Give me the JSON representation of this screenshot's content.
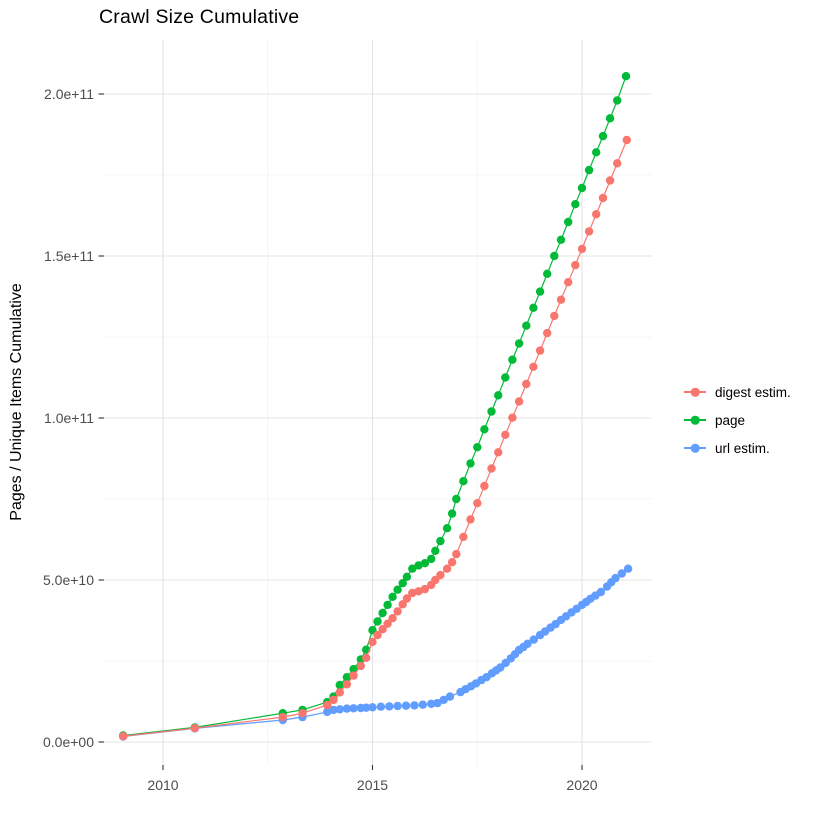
{
  "title": "Crawl Size Cumulative",
  "axes": {
    "y_label": "Pages / Unique Items Cumulative",
    "y_ticks": [
      "0.0e+00",
      "5.0e+10",
      "1.0e+11",
      "1.5e+11",
      "2.0e+11"
    ],
    "x_ticks": [
      "2010",
      "2015",
      "2020"
    ]
  },
  "legend": {
    "items": [
      {
        "label": "digest estim.",
        "color": "#F8766D"
      },
      {
        "label": "page",
        "color": "#00BA38"
      },
      {
        "label": "url estim.",
        "color": "#619CFF"
      }
    ]
  },
  "colors": {
    "grid_major": "#e4e4e4",
    "grid_minor": "#f0f0f0",
    "tick_mark": "#333333",
    "axis_text": "#4d4d4d"
  },
  "chart_data": {
    "type": "line",
    "title": "Crawl Size Cumulative",
    "xlabel": "",
    "ylabel": "Pages / Unique Items Cumulative",
    "x_unit": "year (decimal)",
    "value_unit_multiplier": 1000000000.0,
    "xlim": [
      2008.6,
      2021.7
    ],
    "ylim": [
      0,
      216000000000.0
    ],
    "grid": true,
    "legend_position": "right",
    "x_tick_values": [
      2010,
      2015,
      2020
    ],
    "x_minor_tick_values": [
      2012.5,
      2017.5
    ],
    "y_tick_values_billions": [
      0,
      50,
      100,
      150,
      200
    ],
    "y_minor_tick_values_billions": [
      25,
      75,
      125,
      175
    ],
    "marker_radius_px": 4.2,
    "series": [
      {
        "name": "digest estim.",
        "color": "#F8766D",
        "draw_order": 3,
        "points_year_billions": [
          [
            2009.05,
            1.8
          ],
          [
            2010.76,
            4.3
          ],
          [
            2012.86,
            7.7
          ],
          [
            2013.33,
            8.9
          ],
          [
            2013.92,
            11.4
          ],
          [
            2014.07,
            13.0
          ],
          [
            2014.22,
            15.3
          ],
          [
            2014.39,
            17.8
          ],
          [
            2014.55,
            20.5
          ],
          [
            2014.72,
            23.5
          ],
          [
            2014.85,
            26.0
          ],
          [
            2015.0,
            30.9
          ],
          [
            2015.12,
            33.0
          ],
          [
            2015.24,
            34.8
          ],
          [
            2015.36,
            36.5
          ],
          [
            2015.48,
            38.2
          ],
          [
            2015.6,
            40.3
          ],
          [
            2015.72,
            42.5
          ],
          [
            2015.82,
            44.3
          ],
          [
            2015.95,
            46.0
          ],
          [
            2016.1,
            46.5
          ],
          [
            2016.25,
            47.2
          ],
          [
            2016.4,
            48.5
          ],
          [
            2016.5,
            50.0
          ],
          [
            2016.62,
            51.5
          ],
          [
            2016.78,
            53.5
          ],
          [
            2016.9,
            55.5
          ],
          [
            2017.0,
            58.0
          ],
          [
            2017.17,
            63.3
          ],
          [
            2017.34,
            68.7
          ],
          [
            2017.5,
            73.7
          ],
          [
            2017.67,
            79.0
          ],
          [
            2017.84,
            84.4
          ],
          [
            2018.0,
            89.4
          ],
          [
            2018.17,
            94.8
          ],
          [
            2018.34,
            100.1
          ],
          [
            2018.5,
            105.1
          ],
          [
            2018.67,
            110.5
          ],
          [
            2018.84,
            115.8
          ],
          [
            2019.0,
            120.8
          ],
          [
            2019.17,
            126.2
          ],
          [
            2019.34,
            131.5
          ],
          [
            2019.5,
            136.5
          ],
          [
            2019.67,
            141.9
          ],
          [
            2019.84,
            147.2
          ],
          [
            2020.0,
            152.2
          ],
          [
            2020.17,
            157.6
          ],
          [
            2020.34,
            162.9
          ],
          [
            2020.5,
            167.9
          ],
          [
            2020.67,
            173.3
          ],
          [
            2020.84,
            178.6
          ],
          [
            2021.07,
            185.8
          ]
        ]
      },
      {
        "name": "page",
        "color": "#00BA38",
        "draw_order": 1,
        "points_year_billions": [
          [
            2009.05,
            2.0
          ],
          [
            2010.76,
            4.5
          ],
          [
            2012.86,
            8.9
          ],
          [
            2013.33,
            9.9
          ],
          [
            2013.92,
            12.3
          ],
          [
            2014.07,
            14.0
          ],
          [
            2014.22,
            17.6
          ],
          [
            2014.39,
            20.0
          ],
          [
            2014.55,
            22.5
          ],
          [
            2014.72,
            25.5
          ],
          [
            2014.85,
            28.5
          ],
          [
            2015.0,
            34.5
          ],
          [
            2015.12,
            37.2
          ],
          [
            2015.24,
            39.8
          ],
          [
            2015.36,
            42.3
          ],
          [
            2015.48,
            44.8
          ],
          [
            2015.6,
            47.0
          ],
          [
            2015.72,
            49.0
          ],
          [
            2015.82,
            51.0
          ],
          [
            2015.95,
            53.5
          ],
          [
            2016.1,
            54.5
          ],
          [
            2016.25,
            55.2
          ],
          [
            2016.4,
            56.5
          ],
          [
            2016.5,
            59.0
          ],
          [
            2016.62,
            62.0
          ],
          [
            2016.78,
            66.0
          ],
          [
            2016.9,
            70.5
          ],
          [
            2017.0,
            75.0
          ],
          [
            2017.17,
            80.5
          ],
          [
            2017.34,
            86.0
          ],
          [
            2017.5,
            91.0
          ],
          [
            2017.67,
            96.5
          ],
          [
            2017.84,
            102.0
          ],
          [
            2018.0,
            107.0
          ],
          [
            2018.17,
            112.5
          ],
          [
            2018.34,
            118.0
          ],
          [
            2018.5,
            123.0
          ],
          [
            2018.67,
            128.5
          ],
          [
            2018.84,
            134.0
          ],
          [
            2019.0,
            139.0
          ],
          [
            2019.17,
            144.5
          ],
          [
            2019.34,
            150.0
          ],
          [
            2019.5,
            155.0
          ],
          [
            2019.67,
            160.5
          ],
          [
            2019.84,
            166.0
          ],
          [
            2020.0,
            171.0
          ],
          [
            2020.17,
            176.5
          ],
          [
            2020.34,
            182.0
          ],
          [
            2020.5,
            187.0
          ],
          [
            2020.67,
            192.5
          ],
          [
            2020.84,
            198.0
          ],
          [
            2021.05,
            205.5
          ]
        ]
      },
      {
        "name": "url estim.",
        "color": "#619CFF",
        "draw_order": 2,
        "points_year_billions": [
          [
            2009.05,
            1.7
          ],
          [
            2010.76,
            4.2
          ],
          [
            2012.86,
            6.8
          ],
          [
            2013.33,
            7.7
          ],
          [
            2013.92,
            9.3
          ],
          [
            2014.07,
            9.9
          ],
          [
            2014.22,
            10.1
          ],
          [
            2014.39,
            10.3
          ],
          [
            2014.55,
            10.4
          ],
          [
            2014.72,
            10.5
          ],
          [
            2014.85,
            10.6
          ],
          [
            2015.0,
            10.7
          ],
          [
            2015.2,
            10.9
          ],
          [
            2015.4,
            11.0
          ],
          [
            2015.6,
            11.1
          ],
          [
            2015.8,
            11.2
          ],
          [
            2016.0,
            11.3
          ],
          [
            2016.2,
            11.5
          ],
          [
            2016.4,
            11.8
          ],
          [
            2016.55,
            12.0
          ],
          [
            2016.7,
            13.0
          ],
          [
            2016.85,
            14.0
          ],
          [
            2017.1,
            15.4
          ],
          [
            2017.22,
            16.3
          ],
          [
            2017.35,
            17.2
          ],
          [
            2017.47,
            18.1
          ],
          [
            2017.6,
            19.1
          ],
          [
            2017.72,
            20.0
          ],
          [
            2017.85,
            21.2
          ],
          [
            2017.95,
            22.1
          ],
          [
            2018.05,
            23.0
          ],
          [
            2018.18,
            24.4
          ],
          [
            2018.3,
            25.8
          ],
          [
            2018.4,
            27.1
          ],
          [
            2018.5,
            28.4
          ],
          [
            2018.6,
            29.3
          ],
          [
            2018.7,
            30.3
          ],
          [
            2018.85,
            31.6
          ],
          [
            2019.0,
            33.0
          ],
          [
            2019.12,
            34.1
          ],
          [
            2019.25,
            35.3
          ],
          [
            2019.37,
            36.4
          ],
          [
            2019.5,
            37.7
          ],
          [
            2019.62,
            38.8
          ],
          [
            2019.75,
            40.0
          ],
          [
            2019.87,
            41.1
          ],
          [
            2020.0,
            42.3
          ],
          [
            2020.1,
            43.2
          ],
          [
            2020.2,
            44.2
          ],
          [
            2020.32,
            45.2
          ],
          [
            2020.45,
            46.3
          ],
          [
            2020.6,
            48.0
          ],
          [
            2020.7,
            49.3
          ],
          [
            2020.8,
            50.6
          ],
          [
            2020.95,
            52.0
          ],
          [
            2021.1,
            53.5
          ]
        ]
      }
    ]
  }
}
